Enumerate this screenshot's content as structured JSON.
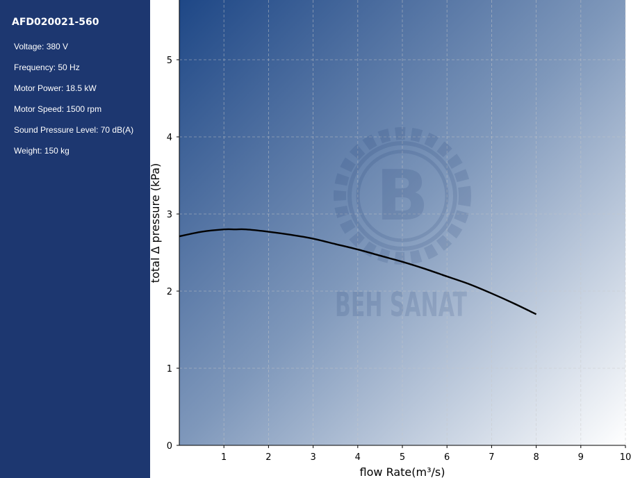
{
  "sidebar": {
    "model": "AFD020021-560",
    "specs": [
      {
        "label": "Voltage",
        "value": "380 V"
      },
      {
        "label": "Frequency",
        "value": "50 Hz"
      },
      {
        "label": "Motor Power",
        "value": "18.5 kW"
      },
      {
        "label": "Motor Speed",
        "value": "1500 rpm"
      },
      {
        "label": "Sound Pressure Level",
        "value": "70 dB(A)"
      },
      {
        "label": "Weight",
        "value": "150 kg"
      }
    ]
  },
  "watermark": {
    "text": "BEH SANAT",
    "letter": "B"
  },
  "colors": {
    "sidebar": "#1d3770",
    "gradient_dark": "#1e4786",
    "gradient_light": "#ffffff",
    "curve": "#000000"
  },
  "chart_data": {
    "type": "line",
    "xlabel": "flow Rate(m³/s)",
    "ylabel": "total Δ pressure (kPa)",
    "xlim": [
      0,
      10
    ],
    "ylim": [
      0,
      5.8
    ],
    "xticks": [
      1,
      2,
      3,
      4,
      5,
      6,
      7,
      8,
      9,
      10
    ],
    "yticks": [
      0,
      1,
      2,
      3,
      4,
      5
    ],
    "grid": true,
    "series": [
      {
        "x": [
          0,
          0.5,
          1,
          1.25,
          1.5,
          2,
          2.5,
          3,
          3.5,
          4,
          4.5,
          5,
          5.5,
          6,
          6.5,
          7,
          7.5,
          8
        ],
        "y": [
          2.71,
          2.77,
          2.8,
          2.8,
          2.8,
          2.77,
          2.73,
          2.68,
          2.61,
          2.54,
          2.46,
          2.38,
          2.29,
          2.19,
          2.09,
          1.97,
          1.84,
          1.7
        ]
      }
    ]
  }
}
